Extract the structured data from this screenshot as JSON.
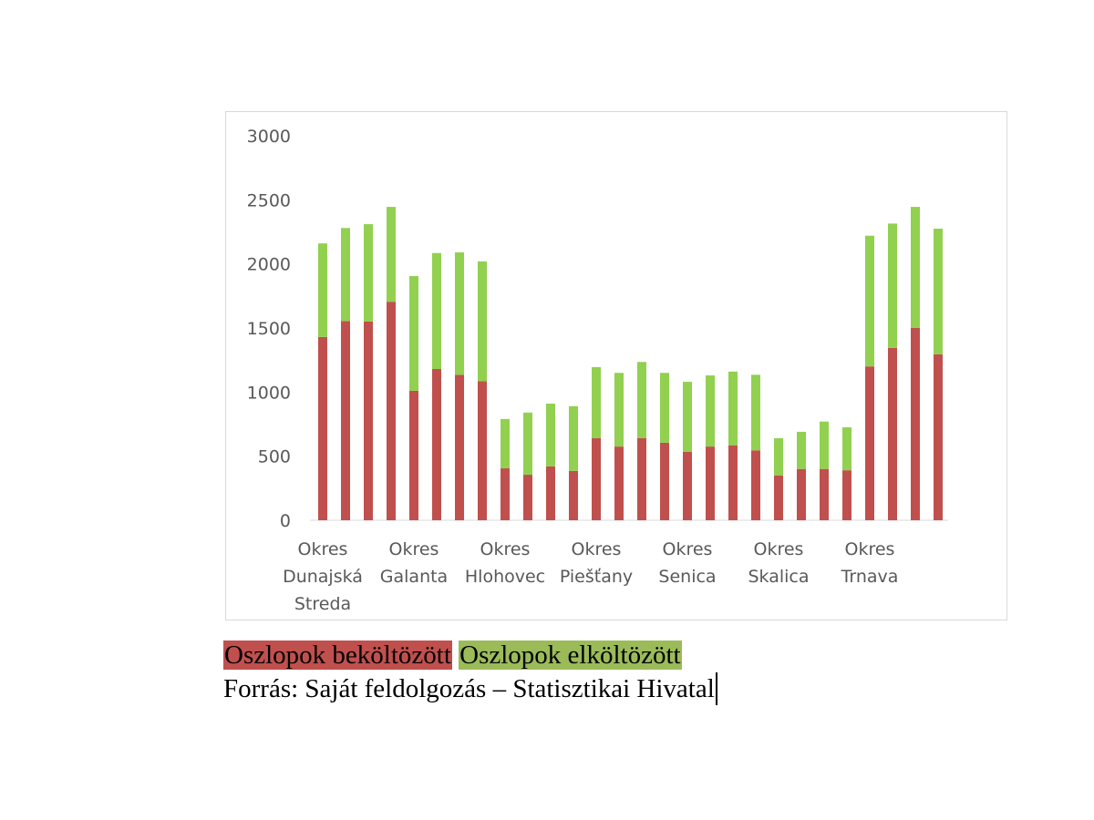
{
  "chart_data": {
    "type": "stacked_bar",
    "categories": [
      "Okres Dunajská Streda",
      null,
      null,
      null,
      "Okres Galanta",
      null,
      null,
      null,
      "Okres Hlohovec",
      null,
      null,
      null,
      "Okres Piešťany",
      null,
      null,
      null,
      "Okres Senica",
      null,
      null,
      null,
      "Okres Skalica",
      null,
      null,
      null,
      "Okres Trnava",
      null,
      null,
      null
    ],
    "series": [
      {
        "name": "Oszlopok beköltözött",
        "color": "#c0504d",
        "legend_color": "#c0504d",
        "values": [
          1430,
          1555,
          1550,
          1705,
          1010,
          1180,
          1135,
          1085,
          405,
          355,
          420,
          385,
          640,
          575,
          640,
          605,
          535,
          575,
          585,
          545,
          350,
          400,
          400,
          390,
          1200,
          1345,
          1500,
          1295
        ]
      },
      {
        "name": "Oszlopok elköltözött",
        "color": "#92d050",
        "legend_color": "#9bbb59",
        "values": [
          730,
          725,
          760,
          740,
          895,
          905,
          955,
          935,
          385,
          485,
          490,
          505,
          555,
          575,
          595,
          545,
          545,
          555,
          575,
          590,
          290,
          290,
          370,
          335,
          1020,
          970,
          945,
          980
        ]
      }
    ],
    "ylim": [
      0,
      3000
    ],
    "yticks": [
      0,
      500,
      1000,
      1500,
      2000,
      2500,
      3000
    ],
    "grid": false,
    "source": "Forrás: Saját feldolgozás – Statisztikai Hivatal"
  }
}
